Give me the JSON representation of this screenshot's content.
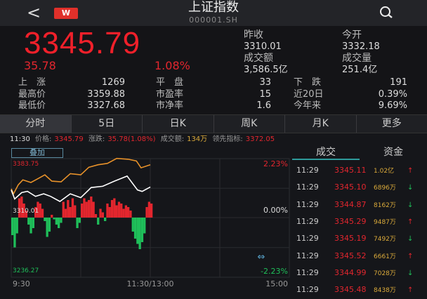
{
  "header": {
    "title": "上证指数",
    "code": "000001.SH",
    "logo": "W",
    "back_icon": "chevron-left-icon",
    "search_icon": "search-icon"
  },
  "quote": {
    "price": "3345.79",
    "change": "35.78",
    "change_pct": "1.08%",
    "prev_close_label": "昨收",
    "prev_close": "3310.01",
    "open_label": "今开",
    "open": "3332.18",
    "turnover_label": "成交额",
    "turnover": "3,586.5亿",
    "volume_label": "成交量",
    "volume": "251.4亿"
  },
  "stats": [
    [
      "上　涨",
      "1269",
      "平　盘",
      "33",
      "下　跌",
      "191"
    ],
    [
      "最高价",
      "3359.88",
      "市盈率",
      "15",
      "近20日",
      "0.39%"
    ],
    [
      "最低价",
      "3327.68",
      "市净率",
      "1.6",
      "今年来",
      "9.69%"
    ]
  ],
  "tabs": [
    "分时",
    "5日",
    "日K",
    "周K",
    "月K",
    "更多"
  ],
  "info": {
    "time": "11:30",
    "price_label": "价格:",
    "price": "3345.79",
    "chg_label": "涨跌:",
    "chg": "35.78(1.08%)",
    "amt_label": "成交额:",
    "amt": "134万",
    "lead_label": "领先指标:",
    "lead": "3372.05"
  },
  "overlay_button": "叠加",
  "colors": {
    "up": "#e3262e",
    "down": "#1fbf5a",
    "price_line": "#ffffff",
    "lead_line": "#e8922a",
    "accent": "#2e9b9b"
  },
  "chart_data": {
    "type": "line",
    "y_max_label": "3383.75",
    "y_mid_label": "3310.01",
    "y_min_label": "3236.27",
    "pct_max_label": "2.23%",
    "pct_mid_label": "0.00%",
    "pct_min_label": "-2.23%",
    "ylim": [
      3236.27,
      3383.75
    ],
    "x_labels": [
      "9:30",
      "11:30/13:00",
      "15:00"
    ],
    "price": {
      "minutes": [
        0,
        3,
        9,
        14,
        21,
        28,
        34,
        42,
        51,
        60,
        69,
        79,
        89,
        100,
        109,
        113,
        120
      ],
      "values": [
        3344.7,
        3333.6,
        3341.5,
        3343.1,
        3336.8,
        3340,
        3336.8,
        3330.5,
        3340,
        3335.2,
        3347.8,
        3349.4,
        3355.7,
        3362,
        3344.7,
        3343,
        3348.5
      ]
    },
    "lead": {
      "minutes": [
        0,
        2,
        6,
        10,
        17,
        23,
        29,
        35,
        43,
        51,
        60,
        67,
        75,
        83,
        91,
        101,
        108,
        112,
        120
      ],
      "values": [
        3346.2,
        3340,
        3351,
        3357.3,
        3354.1,
        3358.8,
        3363.6,
        3355.7,
        3354.9,
        3365.1,
        3363.6,
        3373,
        3376.2,
        3377.8,
        3384,
        3383,
        3380.9,
        3372.3,
        3376.2
      ]
    },
    "bars": [
      -50,
      -85,
      -45,
      55,
      60,
      40,
      20,
      -20,
      -45,
      -30,
      30,
      45,
      40,
      25,
      -10,
      -55,
      -40,
      8,
      -5,
      -20,
      -30,
      -15,
      45,
      25,
      50,
      30,
      55,
      35,
      -30,
      -15,
      40,
      55,
      45,
      50,
      60,
      45,
      10,
      -20,
      25,
      15,
      -10,
      40,
      30,
      50,
      55,
      35,
      45,
      40,
      25,
      35,
      30,
      20,
      -40,
      -60,
      -75,
      -90,
      -70,
      -45,
      30,
      45,
      40
    ]
  },
  "trades": {
    "tab_active": "成交",
    "tab_other": "资金",
    "rows": [
      {
        "time": "11:29",
        "price": "3345.11",
        "vol": "1.02亿",
        "dir": "up"
      },
      {
        "time": "11:29",
        "price": "3345.10",
        "vol": "6896万",
        "dir": "down"
      },
      {
        "time": "11:29",
        "price": "3344.87",
        "vol": "8162万",
        "dir": "down"
      },
      {
        "time": "11:29",
        "price": "3345.29",
        "vol": "9487万",
        "dir": "up"
      },
      {
        "time": "11:29",
        "price": "3345.19",
        "vol": "7492万",
        "dir": "down"
      },
      {
        "time": "11:29",
        "price": "3345.52",
        "vol": "6661万",
        "dir": "up"
      },
      {
        "time": "11:29",
        "price": "3344.99",
        "vol": "7028万",
        "dir": "down"
      },
      {
        "time": "11:29",
        "price": "3345.48",
        "vol": "8438万",
        "dir": "up"
      }
    ]
  }
}
